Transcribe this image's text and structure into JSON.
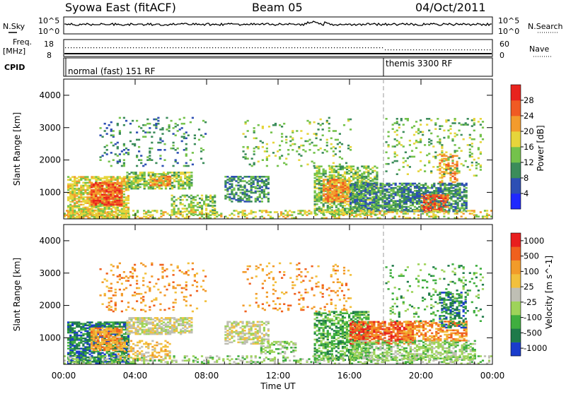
{
  "header": {
    "title": "Syowa East (fitACF)",
    "beam": "Beam 05",
    "date": "04/Oct/2011"
  },
  "status_panels": {
    "noise_left_label": "N.Sky",
    "noise_right_label": "N.Search",
    "noise_ticks": [
      "10^5",
      "10^0"
    ],
    "freq_left_label_1": "Freq.",
    "freq_left_label_2": "[MHz]",
    "freq_left_ticks": [
      "18",
      "8"
    ],
    "nave_right_label": "Nave",
    "nave_right_ticks": [
      "60",
      "0"
    ],
    "cpid_label": "CPID",
    "cpid_segments": [
      {
        "label": "normal (fast) 151 RF",
        "start_hour": 0
      },
      {
        "label": "themis 3300 RF",
        "start_hour": 18
      }
    ]
  },
  "chart_data": [
    {
      "type": "heatmap",
      "ylabel": "Slant Range [km]",
      "yticks": [
        1000,
        2000,
        3000,
        4000
      ],
      "ylim": [
        180,
        4500
      ],
      "colorbar_label": "Power [dB]",
      "colorbar_ticks": [
        "4",
        "8",
        "12",
        "16",
        "20",
        "24",
        "28"
      ],
      "colors": [
        "#1f28ff",
        "#2d4fb4",
        "#3b8c5a",
        "#74c24b",
        "#e6d53b",
        "#f39b2c",
        "#f05a23",
        "#e8231e"
      ],
      "blobs": [
        {
          "t": [
            0.2,
            3.6
          ],
          "r": [
            200,
            1500
          ],
          "lvl": 4,
          "d": 0.75
        },
        {
          "t": [
            1.5,
            3.3
          ],
          "r": [
            600,
            1300
          ],
          "lvl": 6,
          "d": 0.8
        },
        {
          "t": [
            3.5,
            7.2
          ],
          "r": [
            1100,
            1600
          ],
          "lvl": 3,
          "d": 0.7
        },
        {
          "t": [
            4.8,
            6.0
          ],
          "r": [
            1200,
            1500
          ],
          "lvl": 5,
          "d": 0.8
        },
        {
          "t": [
            6.0,
            8.5
          ],
          "r": [
            300,
            900
          ],
          "lvl": 3,
          "d": 0.5
        },
        {
          "t": [
            9.0,
            11.5
          ],
          "r": [
            700,
            1500
          ],
          "lvl": 2,
          "d": 0.55
        },
        {
          "t": [
            14.0,
            17.5
          ],
          "r": [
            300,
            1800
          ],
          "lvl": 3,
          "d": 0.6
        },
        {
          "t": [
            14.5,
            16.0
          ],
          "r": [
            700,
            1400
          ],
          "lvl": 5,
          "d": 0.7
        },
        {
          "t": [
            16.0,
            22.5
          ],
          "r": [
            400,
            1300
          ],
          "lvl": 2,
          "d": 0.7
        },
        {
          "t": [
            20.0,
            21.5
          ],
          "r": [
            400,
            900
          ],
          "lvl": 6,
          "d": 0.6
        },
        {
          "t": [
            21.0,
            22.0
          ],
          "r": [
            1300,
            2200
          ],
          "lvl": 5,
          "d": 0.5
        },
        {
          "t": [
            2.0,
            8.0
          ],
          "r": [
            1800,
            3300
          ],
          "lvl": 2,
          "d": 0.12
        },
        {
          "t": [
            10.0,
            16.0
          ],
          "r": [
            1800,
            3300
          ],
          "lvl": 3,
          "d": 0.1
        },
        {
          "t": [
            18.0,
            23.5
          ],
          "r": [
            1500,
            3300
          ],
          "lvl": 3,
          "d": 0.12
        },
        {
          "t": [
            0.0,
            24.0
          ],
          "r": [
            190,
            450
          ],
          "lvl": 4,
          "d": 0.35
        }
      ]
    },
    {
      "type": "heatmap",
      "ylabel": "Slant Range [km]",
      "yticks": [
        1000,
        2000,
        3000,
        4000
      ],
      "ylim": [
        180,
        4500
      ],
      "xlabel": "Time UT",
      "xticks": [
        "00:00",
        "04:00",
        "08:00",
        "12:00",
        "16:00",
        "20:00",
        "00:00"
      ],
      "xlim": [
        0,
        24
      ],
      "colorbar_label": "Velocity [m s^-1]",
      "colorbar_ticks": [
        "1000",
        "500",
        "100",
        "25",
        "-25",
        "-100",
        "-500",
        "-1000"
      ],
      "colors": [
        "#1a3ccc",
        "#1e7a4a",
        "#3fae3f",
        "#9ed35a",
        "#bfbfb4",
        "#f2c03c",
        "#f29b2a",
        "#f0601e",
        "#e81e1e"
      ],
      "blobs": [
        {
          "t": [
            0.2,
            3.6
          ],
          "r": [
            200,
            1500
          ],
          "lvl": 1,
          "d": 0.7
        },
        {
          "t": [
            1.5,
            3.3
          ],
          "r": [
            600,
            1300
          ],
          "lvl": 6,
          "d": 0.7
        },
        {
          "t": [
            3.5,
            7.2
          ],
          "r": [
            1100,
            1600
          ],
          "lvl": 4,
          "d": 0.7
        },
        {
          "t": [
            3.0,
            6.0
          ],
          "r": [
            300,
            900
          ],
          "lvl": 5,
          "d": 0.45
        },
        {
          "t": [
            9.0,
            11.5
          ],
          "r": [
            800,
            1500
          ],
          "lvl": 4,
          "d": 0.55
        },
        {
          "t": [
            11.0,
            13.0
          ],
          "r": [
            500,
            900
          ],
          "lvl": 3,
          "d": 0.45
        },
        {
          "t": [
            14.0,
            17.0
          ],
          "r": [
            300,
            1800
          ],
          "lvl": 2,
          "d": 0.6
        },
        {
          "t": [
            16.0,
            19.5
          ],
          "r": [
            800,
            1500
          ],
          "lvl": 7,
          "d": 0.75
        },
        {
          "t": [
            16.0,
            23.0
          ],
          "r": [
            300,
            900
          ],
          "lvl": 3,
          "d": 0.55
        },
        {
          "t": [
            19.0,
            22.5
          ],
          "r": [
            900,
            1500
          ],
          "lvl": 6,
          "d": 0.55
        },
        {
          "t": [
            21.0,
            22.5
          ],
          "r": [
            1300,
            2400
          ],
          "lvl": 1,
          "d": 0.45
        },
        {
          "t": [
            2.0,
            8.0
          ],
          "r": [
            1800,
            3300
          ],
          "lvl": 6,
          "d": 0.12
        },
        {
          "t": [
            10.0,
            16.0
          ],
          "r": [
            1800,
            3300
          ],
          "lvl": 6,
          "d": 0.1
        },
        {
          "t": [
            18.0,
            23.5
          ],
          "r": [
            1500,
            3300
          ],
          "lvl": 2,
          "d": 0.12
        },
        {
          "t": [
            0.0,
            24.0
          ],
          "r": [
            190,
            450
          ],
          "lvl": 3,
          "d": 0.3
        }
      ]
    }
  ]
}
